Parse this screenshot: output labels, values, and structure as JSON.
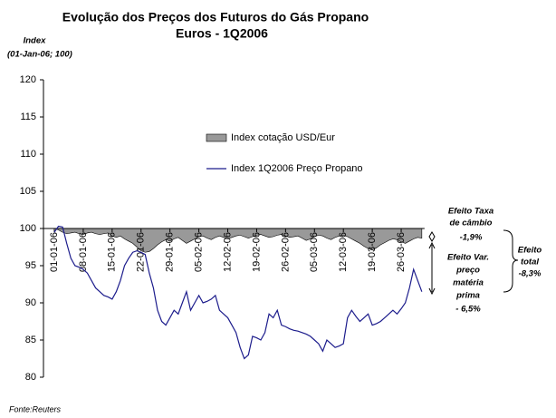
{
  "chart_data": {
    "type": "area_line",
    "title": [
      "Evolução dos Preços dos Futuros do Gás Propano",
      "Euros - 1Q2006"
    ],
    "ylabel": [
      "Index",
      "(01-Jan-06; 100)"
    ],
    "source": "Fonte:Reuters",
    "categories": [
      "01-01-06",
      null,
      null,
      null,
      null,
      null,
      null,
      "08-01-06",
      null,
      null,
      null,
      null,
      null,
      null,
      "15-01-06",
      null,
      null,
      null,
      null,
      null,
      null,
      "22-01-06",
      null,
      null,
      null,
      null,
      null,
      null,
      "29-01-06",
      null,
      null,
      null,
      null,
      null,
      null,
      "05-02-06",
      null,
      null,
      null,
      null,
      null,
      null,
      "12-02-06",
      null,
      null,
      null,
      null,
      null,
      null,
      "19-02-06",
      null,
      null,
      null,
      null,
      null,
      null,
      "26-02-06",
      null,
      null,
      null,
      null,
      null,
      null,
      "05-03-06",
      null,
      null,
      null,
      null,
      null,
      null,
      "12-03-06",
      null,
      null,
      null,
      null,
      null,
      null,
      "19-03-06",
      null,
      null,
      null,
      null,
      null,
      null,
      "26-03-06",
      null,
      null,
      null,
      null,
      null
    ],
    "series": [
      {
        "name": "Index cotação USD/Eur",
        "kind": "area",
        "color": "#999999",
        "values": [
          100,
          99.8,
          99.5,
          99.3,
          99.4,
          99.5,
          99.3,
          99.2,
          99.4,
          99.5,
          99.3,
          99.2,
          99.3,
          99.4,
          99.0,
          98.8,
          99.0,
          98.6,
          98.3,
          98.0,
          97.5,
          97.0,
          96.8,
          96.9,
          97.3,
          97.8,
          98.2,
          98.5,
          98.3,
          98.6,
          98.8,
          98.4,
          98.0,
          98.3,
          98.6,
          98.9,
          99.0,
          98.7,
          98.5,
          98.8,
          99.0,
          98.8,
          98.6,
          98.8,
          99.0,
          99.1,
          98.9,
          98.7,
          98.9,
          99.1,
          99.2,
          99.0,
          98.8,
          98.9,
          99.1,
          99.2,
          99.0,
          98.8,
          98.9,
          99.0,
          98.7,
          98.4,
          98.6,
          98.9,
          99.1,
          99.0,
          98.7,
          98.5,
          98.8,
          99.0,
          99.1,
          98.9,
          98.6,
          98.3,
          98.0,
          97.6,
          97.3,
          97.1,
          97.4,
          97.8,
          98.1,
          98.4,
          98.6,
          98.5,
          98.2,
          98.0,
          98.3,
          98.6,
          98.8,
          98.7
        ]
      },
      {
        "name": "Index 1Q2006 Preço Propano",
        "kind": "line",
        "color": "#1c1c8c",
        "values": [
          99.5,
          100.3,
          100.2,
          98,
          96,
          95,
          94.8,
          94.5,
          94,
          93,
          92,
          91.5,
          91,
          90.8,
          90.5,
          91.5,
          93,
          95,
          96,
          96.8,
          97,
          96.8,
          96.5,
          94,
          92,
          89,
          87.5,
          87,
          88,
          89,
          88.5,
          90,
          91.5,
          89,
          90,
          91,
          90,
          90.2,
          90.5,
          91,
          89,
          88.5,
          88,
          87,
          86,
          84,
          82.5,
          83,
          85.5,
          85.3,
          85,
          86,
          88.5,
          88,
          89,
          87,
          86.8,
          86.5,
          86.3,
          86.2,
          86,
          85.8,
          85.5,
          85,
          84.5,
          83.5,
          85,
          84.5,
          84,
          84.2,
          84.5,
          88,
          89,
          88.2,
          87.5,
          88,
          88.5,
          87,
          87.2,
          87.5,
          88,
          88.5,
          89,
          88.5,
          89.2,
          90,
          92,
          94.5,
          93,
          91.5
        ]
      }
    ],
    "ylim": [
      80,
      120
    ],
    "yticks": [
      80,
      85,
      90,
      95,
      100,
      105,
      110,
      115,
      120
    ],
    "x_axis_at": 100,
    "annotations": [
      {
        "lines": [
          "Efeito Taxa",
          "de câmbio",
          "-1,9%"
        ]
      },
      {
        "lines": [
          "Efeito Var.",
          "preço",
          "matéria",
          "prima",
          "- 6,5%"
        ]
      },
      {
        "lines": [
          "Efeito",
          "total",
          "-8,3%"
        ]
      }
    ]
  }
}
